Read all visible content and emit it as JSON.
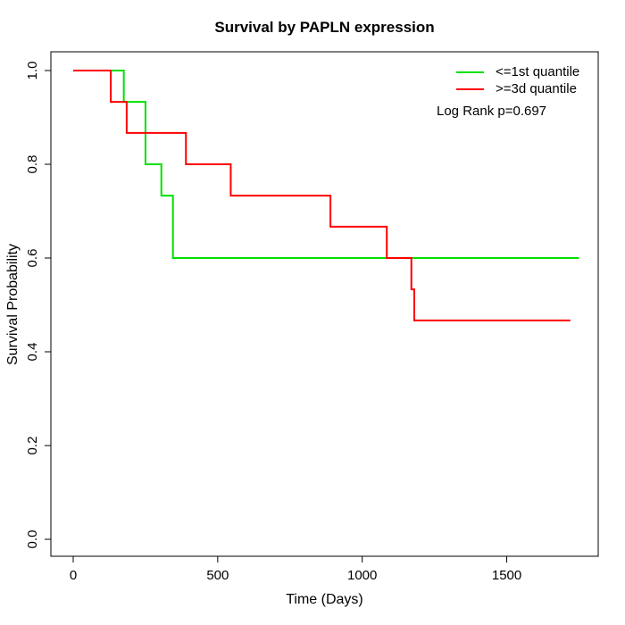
{
  "chart_data": {
    "type": "line",
    "subtype": "kaplan-meier-step",
    "title": "Survival by PAPLN expression",
    "xlabel": "Time (Days)",
    "ylabel": "Survival Probability",
    "x_ticks": [
      0,
      500,
      1000,
      1500
    ],
    "y_ticks": [
      0.0,
      0.2,
      0.4,
      0.6,
      0.8,
      1.0
    ],
    "xlim": [
      0,
      1750
    ],
    "ylim": [
      0.0,
      1.0
    ],
    "grid": false,
    "legend_position": "topright",
    "annotation": "Log Rank p=0.697",
    "axis_color": "#000000",
    "series": [
      {
        "name": "<=1st quantile",
        "color": "#00E100",
        "times": [
          0,
          175,
          250,
          305,
          345
        ],
        "survival": [
          1.0,
          0.933,
          0.8,
          0.733,
          0.6
        ],
        "end_time": 1750
      },
      {
        "name": ">=3d quantile",
        "color": "#FF0000",
        "times": [
          0,
          130,
          185,
          390,
          545,
          890,
          1085,
          1170,
          1180
        ],
        "survival": [
          1.0,
          0.933,
          0.867,
          0.8,
          0.733,
          0.667,
          0.6,
          0.533,
          0.467
        ],
        "end_time": 1720
      }
    ]
  }
}
